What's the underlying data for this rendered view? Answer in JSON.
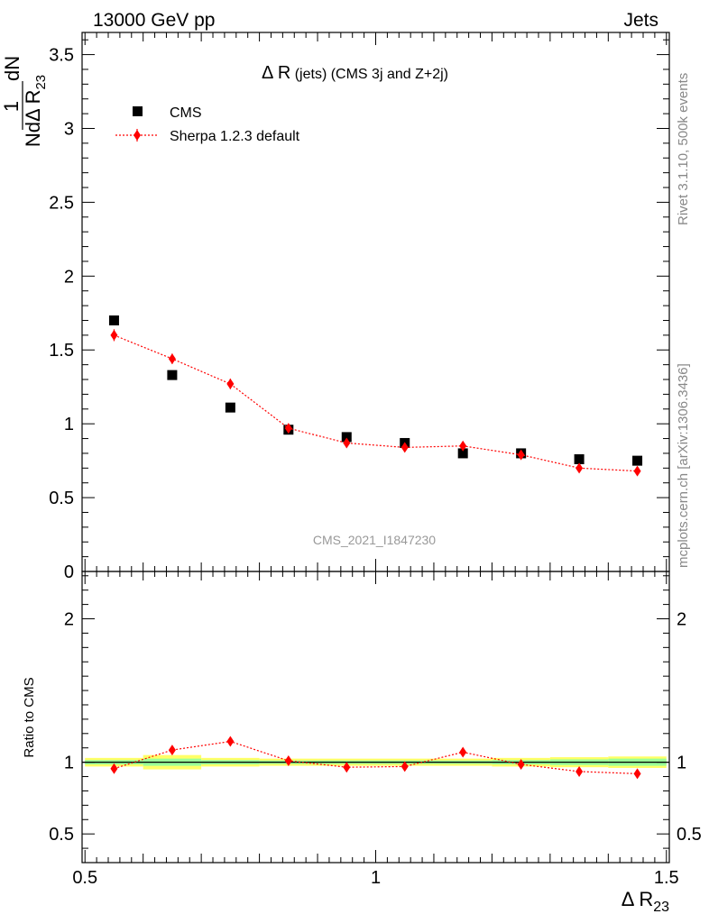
{
  "header": {
    "left": "13000 GeV pp",
    "right": "Jets"
  },
  "side_labels": {
    "rivet": "Rivet 3.1.10,  500k events",
    "mcplots": "mcplots.cern.ch [arXiv:1306.3436]"
  },
  "watermark": "CMS_2021_I1847230",
  "colors": {
    "data": "#000000",
    "mc": "#ff0000",
    "band_yellow": "#ffff66",
    "band_green": "#99ff99"
  },
  "chart_data": [
    {
      "type": "scatter",
      "title_main": "Δ R",
      "title_rest": " (jets) (CMS 3j and Z+2j)",
      "ylabel_num": "dN",
      "ylabel_den": "NdΔ R",
      "ylabel_sub": "23",
      "ylabel_one": "1",
      "ylim": [
        0,
        3.65
      ],
      "yticks": [
        {
          "v": 0,
          "label": "0"
        },
        {
          "v": 0.5,
          "label": "0.5"
        },
        {
          "v": 1,
          "label": "1"
        },
        {
          "v": 1.5,
          "label": "1.5"
        },
        {
          "v": 2,
          "label": "2"
        },
        {
          "v": 2.5,
          "label": "2.5"
        },
        {
          "v": 3,
          "label": "3"
        },
        {
          "v": 3.5,
          "label": "3.5"
        }
      ],
      "legend_position": "top-left",
      "series": [
        {
          "name": "CMS",
          "style": "square",
          "x": [
            0.55,
            0.65,
            0.75,
            0.85,
            0.95,
            1.05,
            1.15,
            1.25,
            1.35,
            1.45
          ],
          "y": [
            1.7,
            1.33,
            1.11,
            0.96,
            0.91,
            0.87,
            0.8,
            0.8,
            0.76,
            0.75
          ],
          "err": [
            0,
            0,
            0,
            0,
            0,
            0,
            0,
            0,
            0,
            0
          ]
        },
        {
          "name": "Sherpa 1.2.3 default",
          "style": "diamond-dotted-line",
          "x": [
            0.55,
            0.65,
            0.75,
            0.85,
            0.95,
            1.05,
            1.15,
            1.25,
            1.35,
            1.45
          ],
          "y": [
            1.6,
            1.44,
            1.27,
            0.97,
            0.87,
            0.84,
            0.85,
            0.79,
            0.7,
            0.68
          ],
          "err": [
            0.04,
            0.035,
            0.035,
            0.025,
            0.025,
            0.025,
            0.025,
            0.025,
            0.02,
            0.02
          ]
        }
      ]
    },
    {
      "type": "scatter",
      "ylabel": "Ratio to CMS",
      "xlabel_main": "Δ R",
      "xlabel_sub": "23",
      "xlim": [
        0.495,
        1.505
      ],
      "ylim": [
        0.3,
        2.33
      ],
      "xticks": [
        {
          "v": 0.5,
          "label": "0.5"
        },
        {
          "v": 1,
          "label": "1"
        },
        {
          "v": 1.5,
          "label": "1.5"
        }
      ],
      "yticks": [
        {
          "v": 0.5,
          "label": "0.5"
        },
        {
          "v": 1,
          "label": "1"
        },
        {
          "v": 2,
          "label": "2"
        }
      ],
      "band": {
        "x_edges": [
          0.5,
          0.6,
          0.7,
          0.8,
          0.9,
          1.0,
          1.1,
          1.2,
          1.3,
          1.4,
          1.5
        ],
        "green_half": [
          0.015,
          0.025,
          0.015,
          0.012,
          0.012,
          0.012,
          0.012,
          0.015,
          0.02,
          0.025
        ],
        "yellow_half": [
          0.03,
          0.05,
          0.03,
          0.025,
          0.025,
          0.025,
          0.025,
          0.03,
          0.035,
          0.04
        ]
      },
      "series": [
        {
          "name": "Sherpa 1.2.3 default",
          "x": [
            0.55,
            0.65,
            0.75,
            0.85,
            0.95,
            1.05,
            1.15,
            1.25,
            1.35,
            1.45
          ],
          "y": [
            0.955,
            1.085,
            1.145,
            1.01,
            0.965,
            0.97,
            1.07,
            0.985,
            0.935,
            0.92
          ],
          "err": [
            0.025,
            0.025,
            0.03,
            0.025,
            0.025,
            0.025,
            0.025,
            0.025,
            0.025,
            0.025
          ]
        }
      ]
    }
  ]
}
